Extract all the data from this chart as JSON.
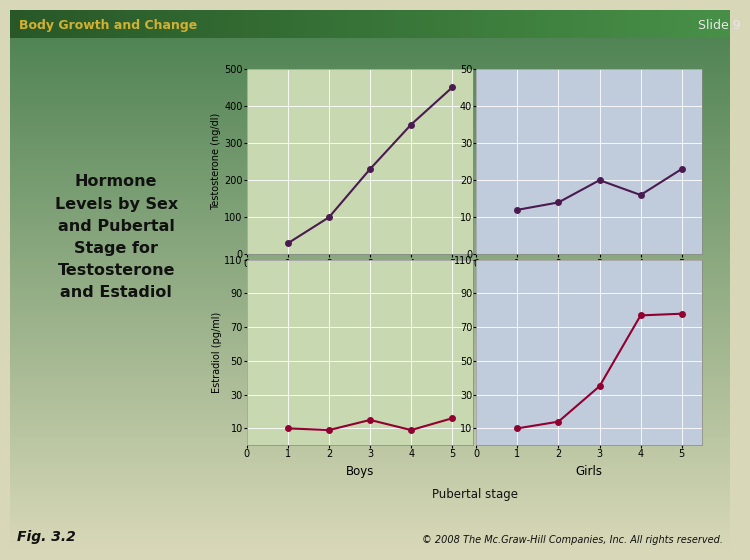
{
  "slide_title": "Body Growth and Change",
  "slide_number": "Slide 9",
  "main_title": "Hormone\nLevels by Sex\nand Pubertal\nStage for\nTestosterone\nand Estadiol",
  "fig_label": "Fig. 3.2",
  "copyright": "© 2008 The Mc.Graw-Hill Companies, Inc. All rights reserved.",
  "pubertal_stages": [
    1,
    2,
    3,
    4,
    5
  ],
  "boys_testosterone": [
    30,
    100,
    230,
    350,
    450
  ],
  "girls_testosterone": [
    12,
    14,
    20,
    16,
    23
  ],
  "boys_estradiol": [
    10,
    9,
    15,
    9,
    16
  ],
  "girls_estradiol": [
    10,
    14,
    35,
    77,
    78
  ],
  "testosterone_boys_ylabel": "Testosterone (ng/dl)",
  "estradiol_boys_ylabel": "Estradiol (pg/ml)",
  "boys_label": "Boys",
  "girls_label": "Girls",
  "pubertal_label": "Pubertal stage",
  "bg_top": "#4a8050",
  "bg_bottom": "#d8d8b8",
  "bg_boys": "#c8d8b0",
  "bg_girls": "#c0ccdc",
  "bg_panel": "#f0f0e8",
  "line_color_testosterone": "#4a1a50",
  "line_color_estradiol": "#900030",
  "header_bg_left": "#2a6030",
  "header_bg_right": "#3a8040",
  "header_text": "#d4b030",
  "slide_num_text": "#e8e8e8",
  "title_text_color": "#111111",
  "yellow_accent": "#d4a010",
  "testo_boys_ylim": [
    0,
    500
  ],
  "testo_boys_yticks": [
    0,
    100,
    200,
    300,
    400,
    500
  ],
  "testo_girls_ylim": [
    0,
    50
  ],
  "testo_girls_yticks": [
    0,
    10,
    20,
    30,
    40,
    50
  ],
  "estradiol_ylim": [
    0,
    110
  ],
  "estradiol_yticks": [
    10,
    30,
    50,
    70,
    90,
    110
  ],
  "xlim": [
    0,
    5.5
  ],
  "xticks": [
    0,
    1,
    2,
    3,
    4,
    5
  ],
  "marker_size": 5,
  "line_width": 1.5,
  "grid_color": "#ffffff",
  "grid_alpha": 1.0,
  "grid_linewidth": 0.6
}
